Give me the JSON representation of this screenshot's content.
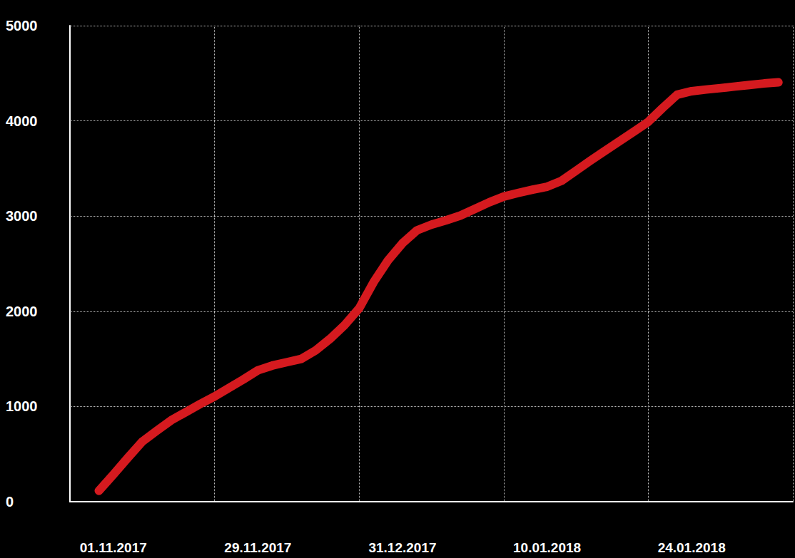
{
  "chart_data": {
    "type": "line",
    "categories": [
      null,
      null,
      null,
      "01.11.2017",
      null,
      null,
      null,
      null,
      null,
      null,
      null,
      null,
      null,
      "29.11.2017",
      null,
      null,
      null,
      null,
      null,
      null,
      null,
      null,
      null,
      "31.12.2017",
      null,
      null,
      null,
      null,
      null,
      null,
      null,
      null,
      null,
      "10.01.2018",
      null,
      null,
      null,
      null,
      null,
      null,
      null,
      null,
      null,
      "24.01.2018",
      null,
      null,
      null,
      null,
      null,
      null,
      null
    ],
    "values": [
      null,
      null,
      115,
      285,
      460,
      630,
      745,
      855,
      940,
      1025,
      1105,
      1195,
      1285,
      1380,
      1430,
      1465,
      1500,
      1590,
      1712,
      1855,
      2030,
      2305,
      2535,
      2715,
      2850,
      2910,
      2955,
      3005,
      3075,
      3145,
      3205,
      3243,
      3278,
      3308,
      3370,
      3476,
      3582,
      3684,
      3785,
      3887,
      3990,
      4136,
      4275,
      4312,
      4329,
      4344,
      4361,
      4377,
      4393,
      4405,
      null
    ],
    "color": "#d51a1f",
    "ylim": [
      0,
      5000
    ],
    "yticks": [
      0,
      1000,
      2000,
      3000,
      4000,
      5000
    ],
    "grid": true
  }
}
